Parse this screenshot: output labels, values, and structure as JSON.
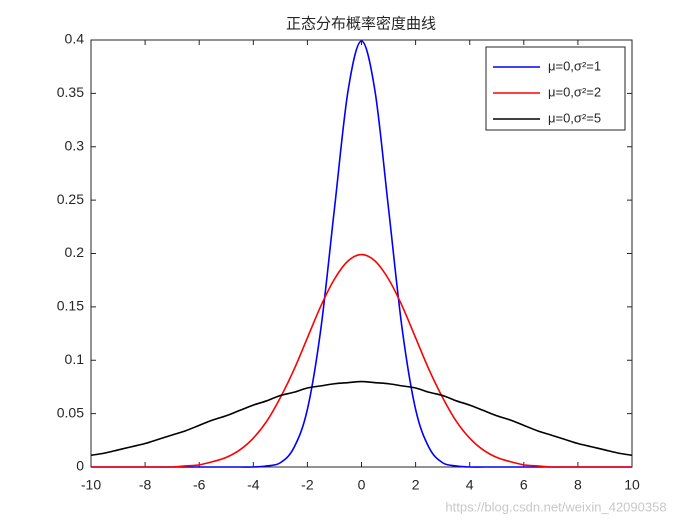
{
  "chart_data": {
    "type": "line",
    "title": "正态分布概率密度曲线",
    "x": [
      -10,
      -9.5,
      -9,
      -8.5,
      -8,
      -7.5,
      -7,
      -6.5,
      -6,
      -5.5,
      -5,
      -4.5,
      -4,
      -3.5,
      -3,
      -2.5,
      -2,
      -1.5,
      -1,
      -0.5,
      0,
      0.5,
      1,
      1.5,
      2,
      2.5,
      3,
      3.5,
      4,
      4.5,
      5,
      5.5,
      6,
      6.5,
      7,
      7.5,
      8,
      8.5,
      9,
      9.5,
      10
    ],
    "series": [
      {
        "name": "μ=0,σ²=1",
        "color": "#0000ff",
        "values": [
          0,
          0,
          0,
          0,
          0,
          0,
          0,
          0,
          0,
          0,
          0,
          0,
          0,
          0.001,
          0.004,
          0.018,
          0.054,
          0.13,
          0.242,
          0.352,
          0.399,
          0.352,
          0.242,
          0.13,
          0.054,
          0.018,
          0.004,
          0.001,
          0,
          0,
          0,
          0,
          0,
          0,
          0,
          0,
          0,
          0,
          0,
          0,
          0
        ]
      },
      {
        "name": "μ=0,σ²=2",
        "color": "#ff0000",
        "values": [
          0,
          0,
          0,
          0,
          0,
          0,
          0,
          0.001,
          0.002,
          0.005,
          0.009,
          0.016,
          0.027,
          0.043,
          0.065,
          0.091,
          0.121,
          0.151,
          0.176,
          0.193,
          0.199,
          0.193,
          0.176,
          0.151,
          0.121,
          0.091,
          0.065,
          0.043,
          0.027,
          0.016,
          0.009,
          0.005,
          0.002,
          0.001,
          0,
          0,
          0,
          0,
          0,
          0,
          0
        ]
      },
      {
        "name": "μ=0,σ²=5",
        "color": "#000000",
        "values": [
          0.011,
          0.013,
          0.016,
          0.019,
          0.022,
          0.026,
          0.03,
          0.034,
          0.039,
          0.044,
          0.048,
          0.053,
          0.058,
          0.062,
          0.067,
          0.07,
          0.074,
          0.076,
          0.078,
          0.079,
          0.08,
          0.079,
          0.078,
          0.076,
          0.074,
          0.07,
          0.067,
          0.062,
          0.058,
          0.053,
          0.048,
          0.044,
          0.039,
          0.034,
          0.03,
          0.026,
          0.022,
          0.019,
          0.016,
          0.013,
          0.011
        ]
      }
    ],
    "xlim": [
      -10,
      10
    ],
    "xticks": [
      -10,
      -8,
      -6,
      -4,
      -2,
      0,
      2,
      4,
      6,
      8,
      10
    ],
    "ylim": [
      0,
      0.4
    ],
    "yticks": [
      0,
      0.05,
      0.1,
      0.15,
      0.2,
      0.25,
      0.3,
      0.35,
      0.4
    ],
    "grid": false,
    "legend": "upper right",
    "watermark": "https://blog.csdn.net/weixin_42090358"
  }
}
